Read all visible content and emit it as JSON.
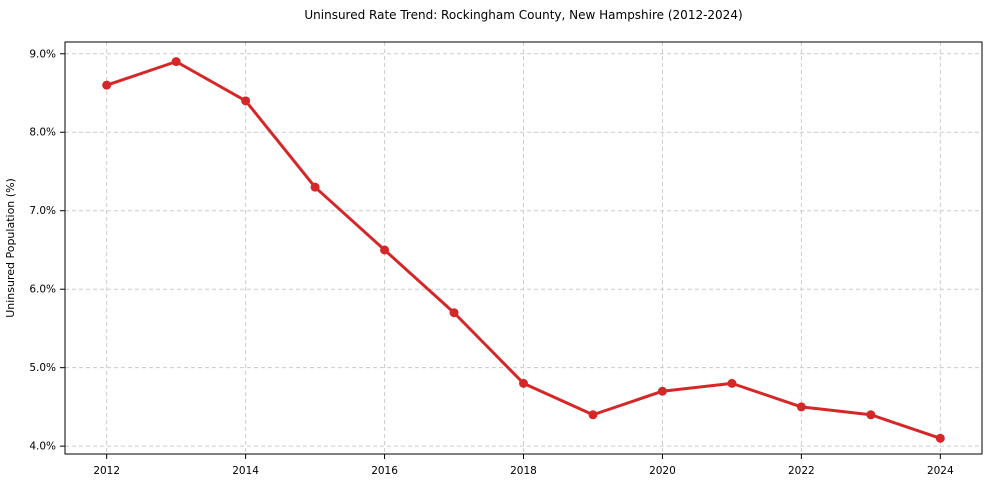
{
  "chart_data": {
    "type": "line",
    "title": "Uninsured Rate Trend: Rockingham County, New Hampshire (2012-2024)",
    "xlabel": "",
    "ylabel": "Uninsured Population (%)",
    "x": [
      2012,
      2013,
      2014,
      2015,
      2016,
      2017,
      2018,
      2019,
      2020,
      2021,
      2022,
      2023,
      2024
    ],
    "series": [
      {
        "name": "Uninsured Rate",
        "values": [
          8.6,
          8.9,
          8.4,
          7.3,
          6.5,
          5.7,
          4.8,
          4.4,
          4.7,
          4.8,
          4.5,
          4.4,
          4.1
        ]
      }
    ],
    "xlim": [
      2011.4,
      2024.6
    ],
    "ylim": [
      3.9,
      9.15
    ],
    "x_ticks": [
      2012,
      2014,
      2016,
      2018,
      2020,
      2022,
      2024
    ],
    "x_tick_labels": [
      "2012",
      "2014",
      "2016",
      "2018",
      "2020",
      "2022",
      "2024"
    ],
    "y_ticks": [
      4.0,
      5.0,
      6.0,
      7.0,
      8.0,
      9.0
    ],
    "y_tick_labels": [
      "4.0%",
      "5.0%",
      "6.0%",
      "7.0%",
      "8.0%",
      "9.0%"
    ],
    "grid": true,
    "grid_style": "dashed",
    "legend_position": "none",
    "colors": {
      "line": "#d62728",
      "marker": "#d62728",
      "grid": "#cccccc",
      "spine": "#000000",
      "text": "#000000",
      "background": "#ffffff"
    }
  }
}
